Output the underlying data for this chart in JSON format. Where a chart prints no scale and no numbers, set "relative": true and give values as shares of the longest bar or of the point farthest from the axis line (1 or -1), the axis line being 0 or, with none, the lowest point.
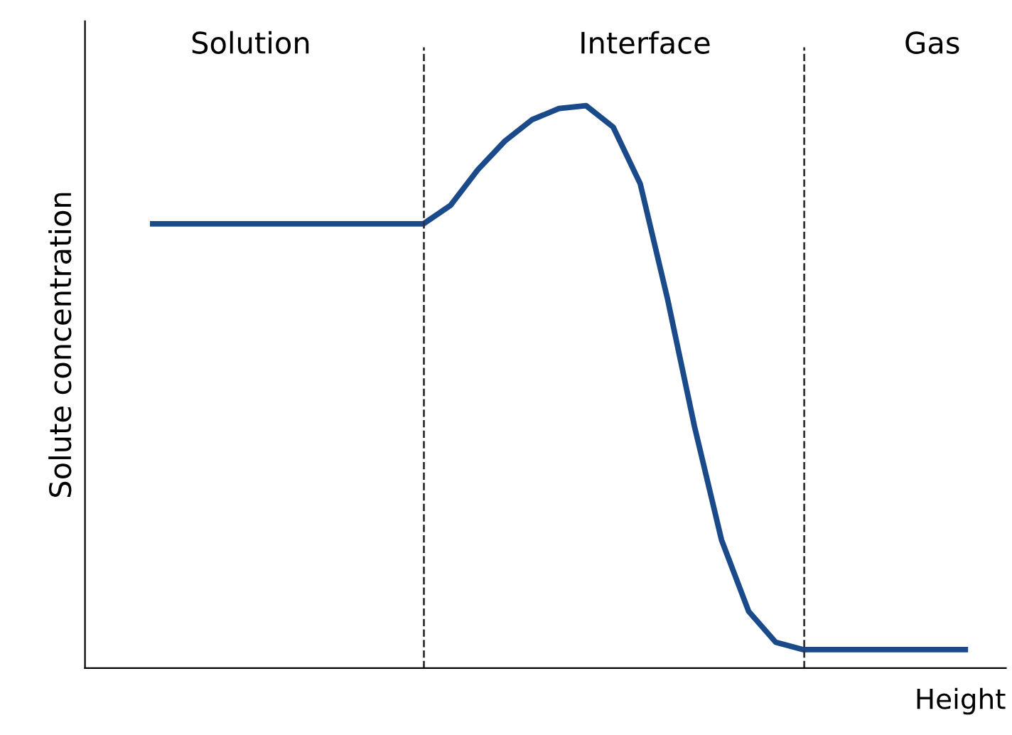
{
  "chart_data": {
    "type": "line",
    "relative": true,
    "xlabel": "Height",
    "ylabel": "Solute concentration",
    "categories": [
      null,
      null,
      null,
      null,
      null,
      null,
      null,
      null,
      null,
      null,
      null,
      null,
      null,
      null,
      null,
      null,
      null,
      null,
      null,
      null,
      null,
      null,
      null,
      null,
      null,
      null,
      null,
      null,
      null,
      null,
      null,
      null,
      null,
      null
    ],
    "series": [
      {
        "color": "#1a4a8a",
        "values": [
          null,
          null,
          0.79,
          0.79,
          0.79,
          0.79,
          0.79,
          0.79,
          0.79,
          0.79,
          0.79,
          0.79,
          0.79,
          0.823,
          0.886,
          0.937,
          0.975,
          0.995,
          1.0,
          0.962,
          0.861,
          0.658,
          0.43,
          0.228,
          0.101,
          0.046,
          0.033,
          0.033,
          0.033,
          0.033,
          0.033,
          0.033,
          0.033,
          null
        ]
      }
    ],
    "annotations": [
      "Solution",
      "Interface",
      "Gas"
    ],
    "line_style": "solid",
    "marker": "none",
    "legend": false
  }
}
